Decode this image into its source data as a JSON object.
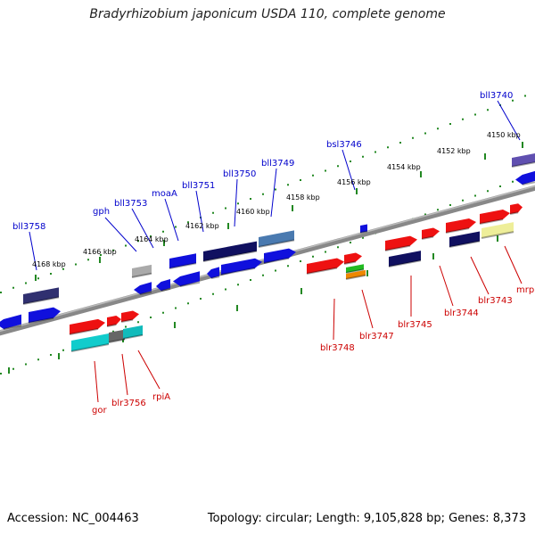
{
  "header": {
    "title": "Bradyrhizobium japonicum USDA 110, complete genome"
  },
  "footer": {
    "accession": "Accession: NC_004463",
    "stats": "Topology: circular; Length: 9,105,828 bp; Genes: 8,373"
  },
  "colors": {
    "backbone": "#888888",
    "tick": "#228822",
    "upper_label": "#0000cc",
    "lower_label": "#cc0000",
    "leader_upper": "#0000cc",
    "leader_lower": "#cc0000"
  },
  "scale": {
    "upper": [
      "4150 kbp",
      "4152 kbp",
      "4154 kbp",
      "4156 kbp",
      "4158 kbp",
      "4160 kbp",
      "4162 kbp",
      "4164 kbp",
      "4166 kbp",
      "4168 kbp"
    ]
  },
  "upper_labels": [
    "bll3740",
    "bsl3746",
    "bll3749",
    "bll3750",
    "bll3751",
    "moaA",
    "bll3753",
    "gph",
    "bll3758"
  ],
  "lower_labels": [
    "mrp",
    "blr3743",
    "blr3744",
    "blr3745",
    "blr3747",
    "blr3748",
    "rpiA",
    "blr3756",
    "gor"
  ]
}
